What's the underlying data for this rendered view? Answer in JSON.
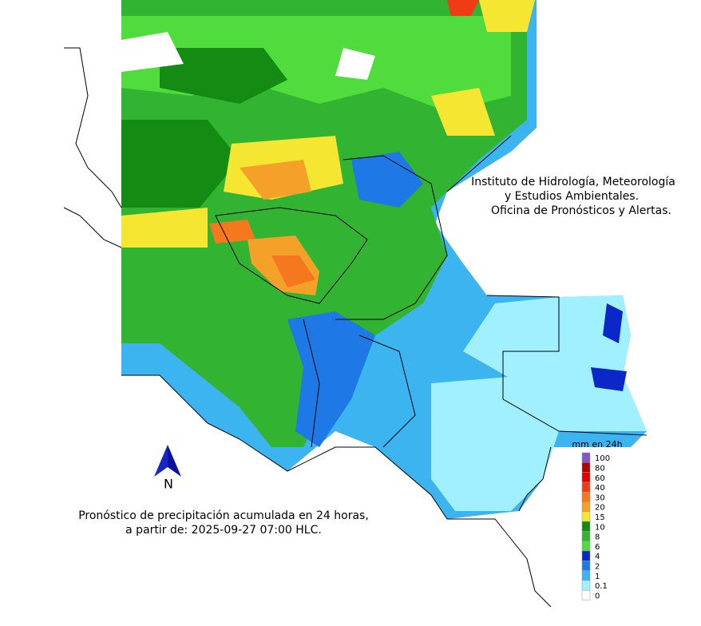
{
  "header": {
    "lines": [
      "Instituto de Hidrología, Meteorología",
      "y Estudios Ambientales.",
      "Oficina de Pronósticos y Alertas."
    ]
  },
  "caption": {
    "lines": [
      "Pronóstico de precipitación acumulada en 24 horas,",
      "a partir de: 2025-09-27 07:00 HLC."
    ]
  },
  "north_arrow": {
    "label": "N"
  },
  "legend": {
    "title": "mm en 24h",
    "items": [
      {
        "value": 100,
        "color": "#7e57c8"
      },
      {
        "value": 80,
        "color": "#b30000"
      },
      {
        "value": 60,
        "color": "#e00000"
      },
      {
        "value": 40,
        "color": "#f03c14"
      },
      {
        "value": 30,
        "color": "#f5781e"
      },
      {
        "value": 20,
        "color": "#f5a028"
      },
      {
        "value": 15,
        "color": "#f5e632"
      },
      {
        "value": 10,
        "color": "#148c14"
      },
      {
        "value": 8,
        "color": "#32b432"
      },
      {
        "value": 6,
        "color": "#50dc3c"
      },
      {
        "value": 4,
        "color": "#0a28c8"
      },
      {
        "value": 2,
        "color": "#1e78e6"
      },
      {
        "value": 1,
        "color": "#3cb4f0"
      },
      {
        "value": 0.1,
        "color": "#a0f0ff"
      },
      {
        "value": 0,
        "color": "#ffffff"
      }
    ]
  }
}
